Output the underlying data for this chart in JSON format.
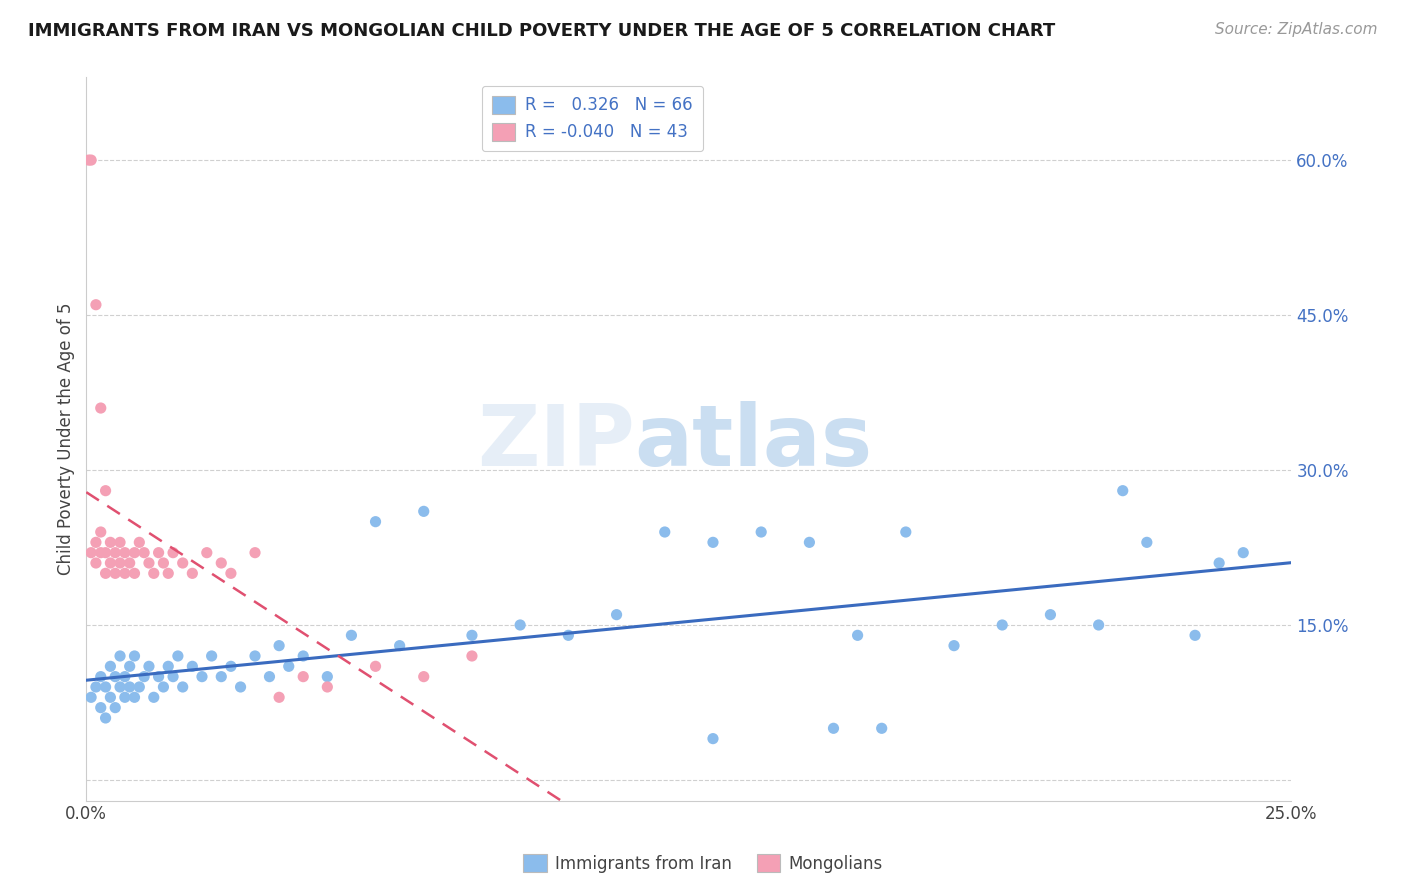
{
  "title": "IMMIGRANTS FROM IRAN VS MONGOLIAN CHILD POVERTY UNDER THE AGE OF 5 CORRELATION CHART",
  "source": "Source: ZipAtlas.com",
  "ylabel_label": "Child Poverty Under the Age of 5",
  "right_yticks": [
    0.0,
    0.15,
    0.3,
    0.45,
    0.6
  ],
  "right_yticklabels": [
    "",
    "15.0%",
    "30.0%",
    "45.0%",
    "60.0%"
  ],
  "xlim": [
    0.0,
    0.25
  ],
  "ylim": [
    -0.02,
    0.68
  ],
  "legend_r1": "R =   0.326   N = 66",
  "legend_r2": "R = -0.040   N = 43",
  "color_blue": "#8BBCEC",
  "color_pink": "#F4A0B5",
  "color_blue_line": "#3A6BBF",
  "color_pink_line": "#E05070",
  "watermark_zip": "ZIP",
  "watermark_atlas": "atlas",
  "legend_labels": [
    "Immigrants from Iran",
    "Mongolians"
  ],
  "blue_scatter_x": [
    0.001,
    0.002,
    0.003,
    0.003,
    0.004,
    0.004,
    0.005,
    0.005,
    0.006,
    0.006,
    0.007,
    0.007,
    0.008,
    0.008,
    0.009,
    0.009,
    0.01,
    0.01,
    0.011,
    0.012,
    0.013,
    0.014,
    0.015,
    0.016,
    0.017,
    0.018,
    0.019,
    0.02,
    0.022,
    0.024,
    0.026,
    0.028,
    0.03,
    0.032,
    0.035,
    0.038,
    0.04,
    0.042,
    0.045,
    0.05,
    0.055,
    0.06,
    0.065,
    0.07,
    0.08,
    0.09,
    0.1,
    0.11,
    0.12,
    0.13,
    0.14,
    0.15,
    0.16,
    0.17,
    0.18,
    0.19,
    0.2,
    0.21,
    0.22,
    0.23,
    0.24,
    0.13,
    0.155,
    0.165,
    0.215,
    0.235
  ],
  "blue_scatter_y": [
    0.08,
    0.09,
    0.07,
    0.1,
    0.06,
    0.09,
    0.08,
    0.11,
    0.07,
    0.1,
    0.09,
    0.12,
    0.08,
    0.1,
    0.09,
    0.11,
    0.08,
    0.12,
    0.09,
    0.1,
    0.11,
    0.08,
    0.1,
    0.09,
    0.11,
    0.1,
    0.12,
    0.09,
    0.11,
    0.1,
    0.12,
    0.1,
    0.11,
    0.09,
    0.12,
    0.1,
    0.13,
    0.11,
    0.12,
    0.1,
    0.14,
    0.25,
    0.13,
    0.26,
    0.14,
    0.15,
    0.14,
    0.16,
    0.24,
    0.23,
    0.24,
    0.23,
    0.14,
    0.24,
    0.13,
    0.15,
    0.16,
    0.15,
    0.23,
    0.14,
    0.22,
    0.04,
    0.05,
    0.05,
    0.28,
    0.21
  ],
  "pink_scatter_x": [
    0.0005,
    0.001,
    0.001,
    0.002,
    0.002,
    0.003,
    0.003,
    0.004,
    0.004,
    0.005,
    0.005,
    0.006,
    0.006,
    0.007,
    0.007,
    0.008,
    0.008,
    0.009,
    0.01,
    0.01,
    0.011,
    0.012,
    0.013,
    0.014,
    0.015,
    0.016,
    0.017,
    0.018,
    0.02,
    0.022,
    0.025,
    0.028,
    0.03,
    0.035,
    0.04,
    0.045,
    0.05,
    0.06,
    0.07,
    0.08,
    0.002,
    0.003,
    0.004
  ],
  "pink_scatter_y": [
    0.6,
    0.6,
    0.22,
    0.23,
    0.21,
    0.24,
    0.22,
    0.2,
    0.22,
    0.23,
    0.21,
    0.22,
    0.2,
    0.21,
    0.23,
    0.2,
    0.22,
    0.21,
    0.22,
    0.2,
    0.23,
    0.22,
    0.21,
    0.2,
    0.22,
    0.21,
    0.2,
    0.22,
    0.21,
    0.2,
    0.22,
    0.21,
    0.2,
    0.22,
    0.08,
    0.1,
    0.09,
    0.11,
    0.1,
    0.12,
    0.46,
    0.36,
    0.28
  ]
}
